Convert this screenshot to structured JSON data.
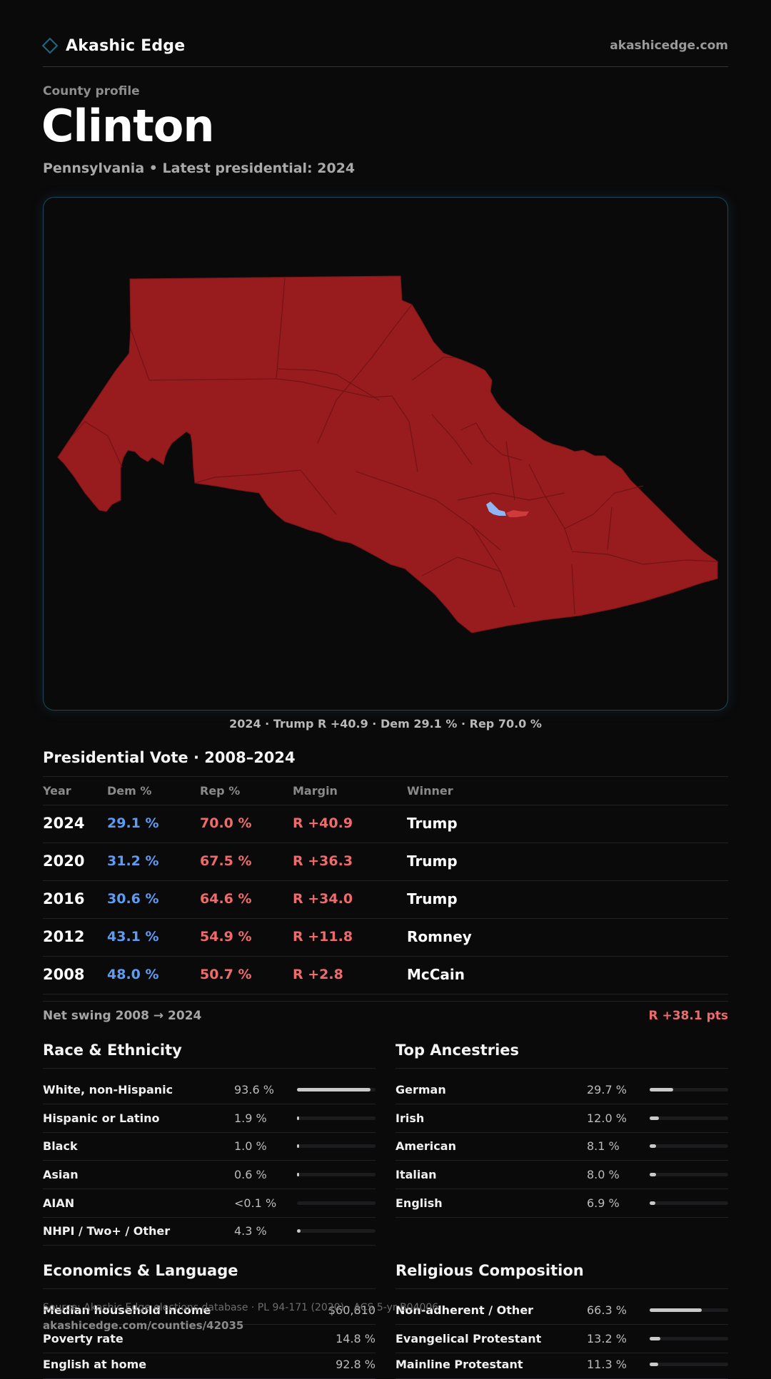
{
  "header": {
    "brand": "Akashic Edge",
    "site": "akashicedge.com"
  },
  "profile": {
    "kicker": "County profile",
    "county": "Clinton",
    "subtitle": "Pennsylvania • Latest presidential: 2024"
  },
  "map": {
    "caption": "2024 · Trump R +40.9 · Dem 29.1 % · Rep 70.0 %",
    "colors": {
      "rep": "#981b1e",
      "dem": "#8fb6f2",
      "rep_light": "#cf3b3b",
      "border": "#17495a"
    }
  },
  "presidential": {
    "title": "Presidential Vote · 2008–2024",
    "columns": [
      "Year",
      "Dem %",
      "Rep %",
      "Margin",
      "Winner"
    ],
    "rows": [
      {
        "year": "2024",
        "dem": "29.1 %",
        "rep": "70.0 %",
        "margin": "R +40.9",
        "winner": "Trump"
      },
      {
        "year": "2020",
        "dem": "31.2 %",
        "rep": "67.5 %",
        "margin": "R +36.3",
        "winner": "Trump"
      },
      {
        "year": "2016",
        "dem": "30.6 %",
        "rep": "64.6 %",
        "margin": "R +34.0",
        "winner": "Trump"
      },
      {
        "year": "2012",
        "dem": "43.1 %",
        "rep": "54.9 %",
        "margin": "R +11.8",
        "winner": "Romney"
      },
      {
        "year": "2008",
        "dem": "48.0 %",
        "rep": "50.7 %",
        "margin": "R +2.8",
        "winner": "McCain"
      }
    ],
    "swing_label": "Net swing 2008 → 2024",
    "swing_value": "R +38.1 pts"
  },
  "race": {
    "title": "Race & Ethnicity",
    "items": [
      {
        "label": "White, non-Hispanic",
        "value": "93.6 %",
        "fraction": 0.936
      },
      {
        "label": "Hispanic or Latino",
        "value": "1.9 %",
        "fraction": 0.019
      },
      {
        "label": "Black",
        "value": "1.0 %",
        "fraction": 0.01
      },
      {
        "label": "Asian",
        "value": "0.6 %",
        "fraction": 0.006
      },
      {
        "label": "AIAN",
        "value": "<0.1 %",
        "fraction": 0.0
      },
      {
        "label": "NHPI / Two+ / Other",
        "value": "4.3 %",
        "fraction": 0.043
      }
    ]
  },
  "ancestry": {
    "title": "Top Ancestries",
    "items": [
      {
        "label": "German",
        "value": "29.7 %",
        "fraction": 0.297
      },
      {
        "label": "Irish",
        "value": "12.0 %",
        "fraction": 0.12
      },
      {
        "label": "American",
        "value": "8.1 %",
        "fraction": 0.081
      },
      {
        "label": "Italian",
        "value": "8.0 %",
        "fraction": 0.08
      },
      {
        "label": "English",
        "value": "6.9 %",
        "fraction": 0.069
      }
    ]
  },
  "economics": {
    "title": "Economics & Language",
    "items": [
      {
        "label": "Median household income",
        "value": "$60,810"
      },
      {
        "label": "Poverty rate",
        "value": "14.8 %"
      },
      {
        "label": "English at home",
        "value": "92.8 %"
      }
    ]
  },
  "religion": {
    "title": "Religious Composition",
    "items": [
      {
        "label": "Non-adherent / Other",
        "value": "66.3 %",
        "fraction": 0.663
      },
      {
        "label": "Evangelical Protestant",
        "value": "13.2 %",
        "fraction": 0.132
      },
      {
        "label": "Mainline Protestant",
        "value": "11.3 %",
        "fraction": 0.113
      }
    ]
  },
  "footer": {
    "source": "Source: Akashic Edge elections database · PL 94-171 (2020) · ACS 5-yr B04006",
    "url": "akashicedge.com/counties/42035"
  }
}
